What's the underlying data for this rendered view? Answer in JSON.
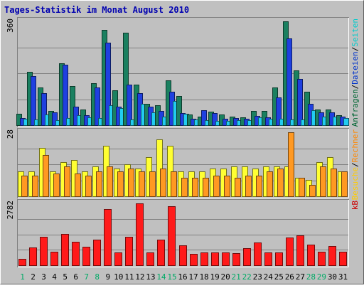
{
  "chart_data": {
    "type": "bar",
    "title": "Tages-Statistik im Monat August 2010",
    "categories": [
      "1",
      "2",
      "3",
      "4",
      "5",
      "6",
      "7",
      "8",
      "9",
      "10",
      "11",
      "12",
      "13",
      "14",
      "15",
      "16",
      "17",
      "18",
      "19",
      "20",
      "21",
      "22",
      "23",
      "24",
      "25",
      "26",
      "27",
      "28",
      "29",
      "30",
      "31"
    ],
    "weekend_categories": [
      "1",
      "7",
      "8",
      "14",
      "15",
      "21",
      "22",
      "28",
      "29"
    ],
    "panels": [
      {
        "id": "top",
        "ymax_label": "360",
        "ylim": [
          0,
          360
        ],
        "right_labels": [
          {
            "text": "Anfragen",
            "color": "#006633"
          },
          {
            "text": "/",
            "color": "#000000"
          },
          {
            "text": "Dateien",
            "color": "#0033cc"
          },
          {
            "text": "/",
            "color": "#000000"
          },
          {
            "text": "Seiten",
            "color": "#00cccc"
          }
        ],
        "series": [
          {
            "name": "Anfragen",
            "color": "#1a8060",
            "values": [
              40,
              185,
              130,
              50,
              215,
              135,
              55,
              145,
              330,
              120,
              320,
              140,
              75,
              70,
              155,
              100,
              38,
              30,
              48,
              38,
              30,
              28,
              50,
              50,
              130,
              360,
              190,
              115,
              55,
              55,
              35
            ]
          },
          {
            "name": "Dateien",
            "color": "#1f40e0",
            "values": [
              24,
              170,
              110,
              45,
              210,
              65,
              35,
              130,
              285,
              65,
              140,
              110,
              65,
              50,
              115,
              42,
              22,
              52,
              42,
              22,
              24,
              22,
              32,
              28,
              95,
              300,
              160,
              75,
              45,
              45,
              30
            ]
          },
          {
            "name": "Seiten",
            "color": "#22ccf0",
            "values": [
              22,
              20,
              38,
              18,
              25,
              35,
              28,
              25,
              70,
              60,
              20,
              75,
              45,
              30,
              85,
              40,
              20,
              18,
              15,
              16,
              18,
              18,
              26,
              22,
              22,
              20,
              20,
              52,
              30,
              30,
              25
            ]
          }
        ]
      },
      {
        "id": "middle",
        "ymax_label": "28",
        "ylim": [
          0,
          28
        ],
        "right_labels": [
          {
            "text": "Besuche",
            "color": "#ffcc00"
          },
          {
            "text": "/",
            "color": "#000000"
          },
          {
            "text": "Rechner",
            "color": "#ff8800"
          }
        ],
        "series": [
          {
            "name": "Besuche",
            "color": "#ffff33",
            "values": [
              11,
              11,
              21,
              11,
              15,
              16,
              11,
              13,
              22,
              12,
              14,
              12,
              17,
              25,
              22,
              11,
              11,
              11,
              12,
              12,
              13,
              13,
              12,
              13,
              13,
              13,
              8,
              7,
              15,
              17,
              11
            ]
          },
          {
            "name": "Rechner",
            "color": "#ff9922",
            "values": [
              9,
              9,
              18,
              10,
              13,
              10,
              9,
              11,
              13,
              11,
              12,
              11,
              11,
              12,
              11,
              8,
              8,
              8,
              9,
              9,
              8,
              9,
              9,
              11,
              12,
              28,
              8,
              5,
              13,
              12,
              11
            ]
          }
        ]
      },
      {
        "id": "bottom",
        "ymax_label": "2782",
        "ylim": [
          0,
          2782
        ],
        "right_labels": [
          {
            "text": "kB",
            "color": "#cc0000"
          }
        ],
        "series": [
          {
            "name": "kB",
            "color": "#ff1a1a",
            "values": [
              290,
              800,
              1280,
              620,
              1420,
              1050,
              820,
              1150,
              2540,
              590,
              1280,
              2782,
              570,
              1150,
              2640,
              890,
              520,
              570,
              580,
              590,
              550,
              770,
              1010,
              590,
              570,
              1260,
              1330,
              920,
              620,
              860,
              600
            ]
          }
        ]
      }
    ],
    "colors": {
      "background": "#c0c0c0",
      "title": "#0000b0",
      "weekend_label": "#00aa66",
      "weekday_label": "#000000"
    },
    "grid": true
  }
}
